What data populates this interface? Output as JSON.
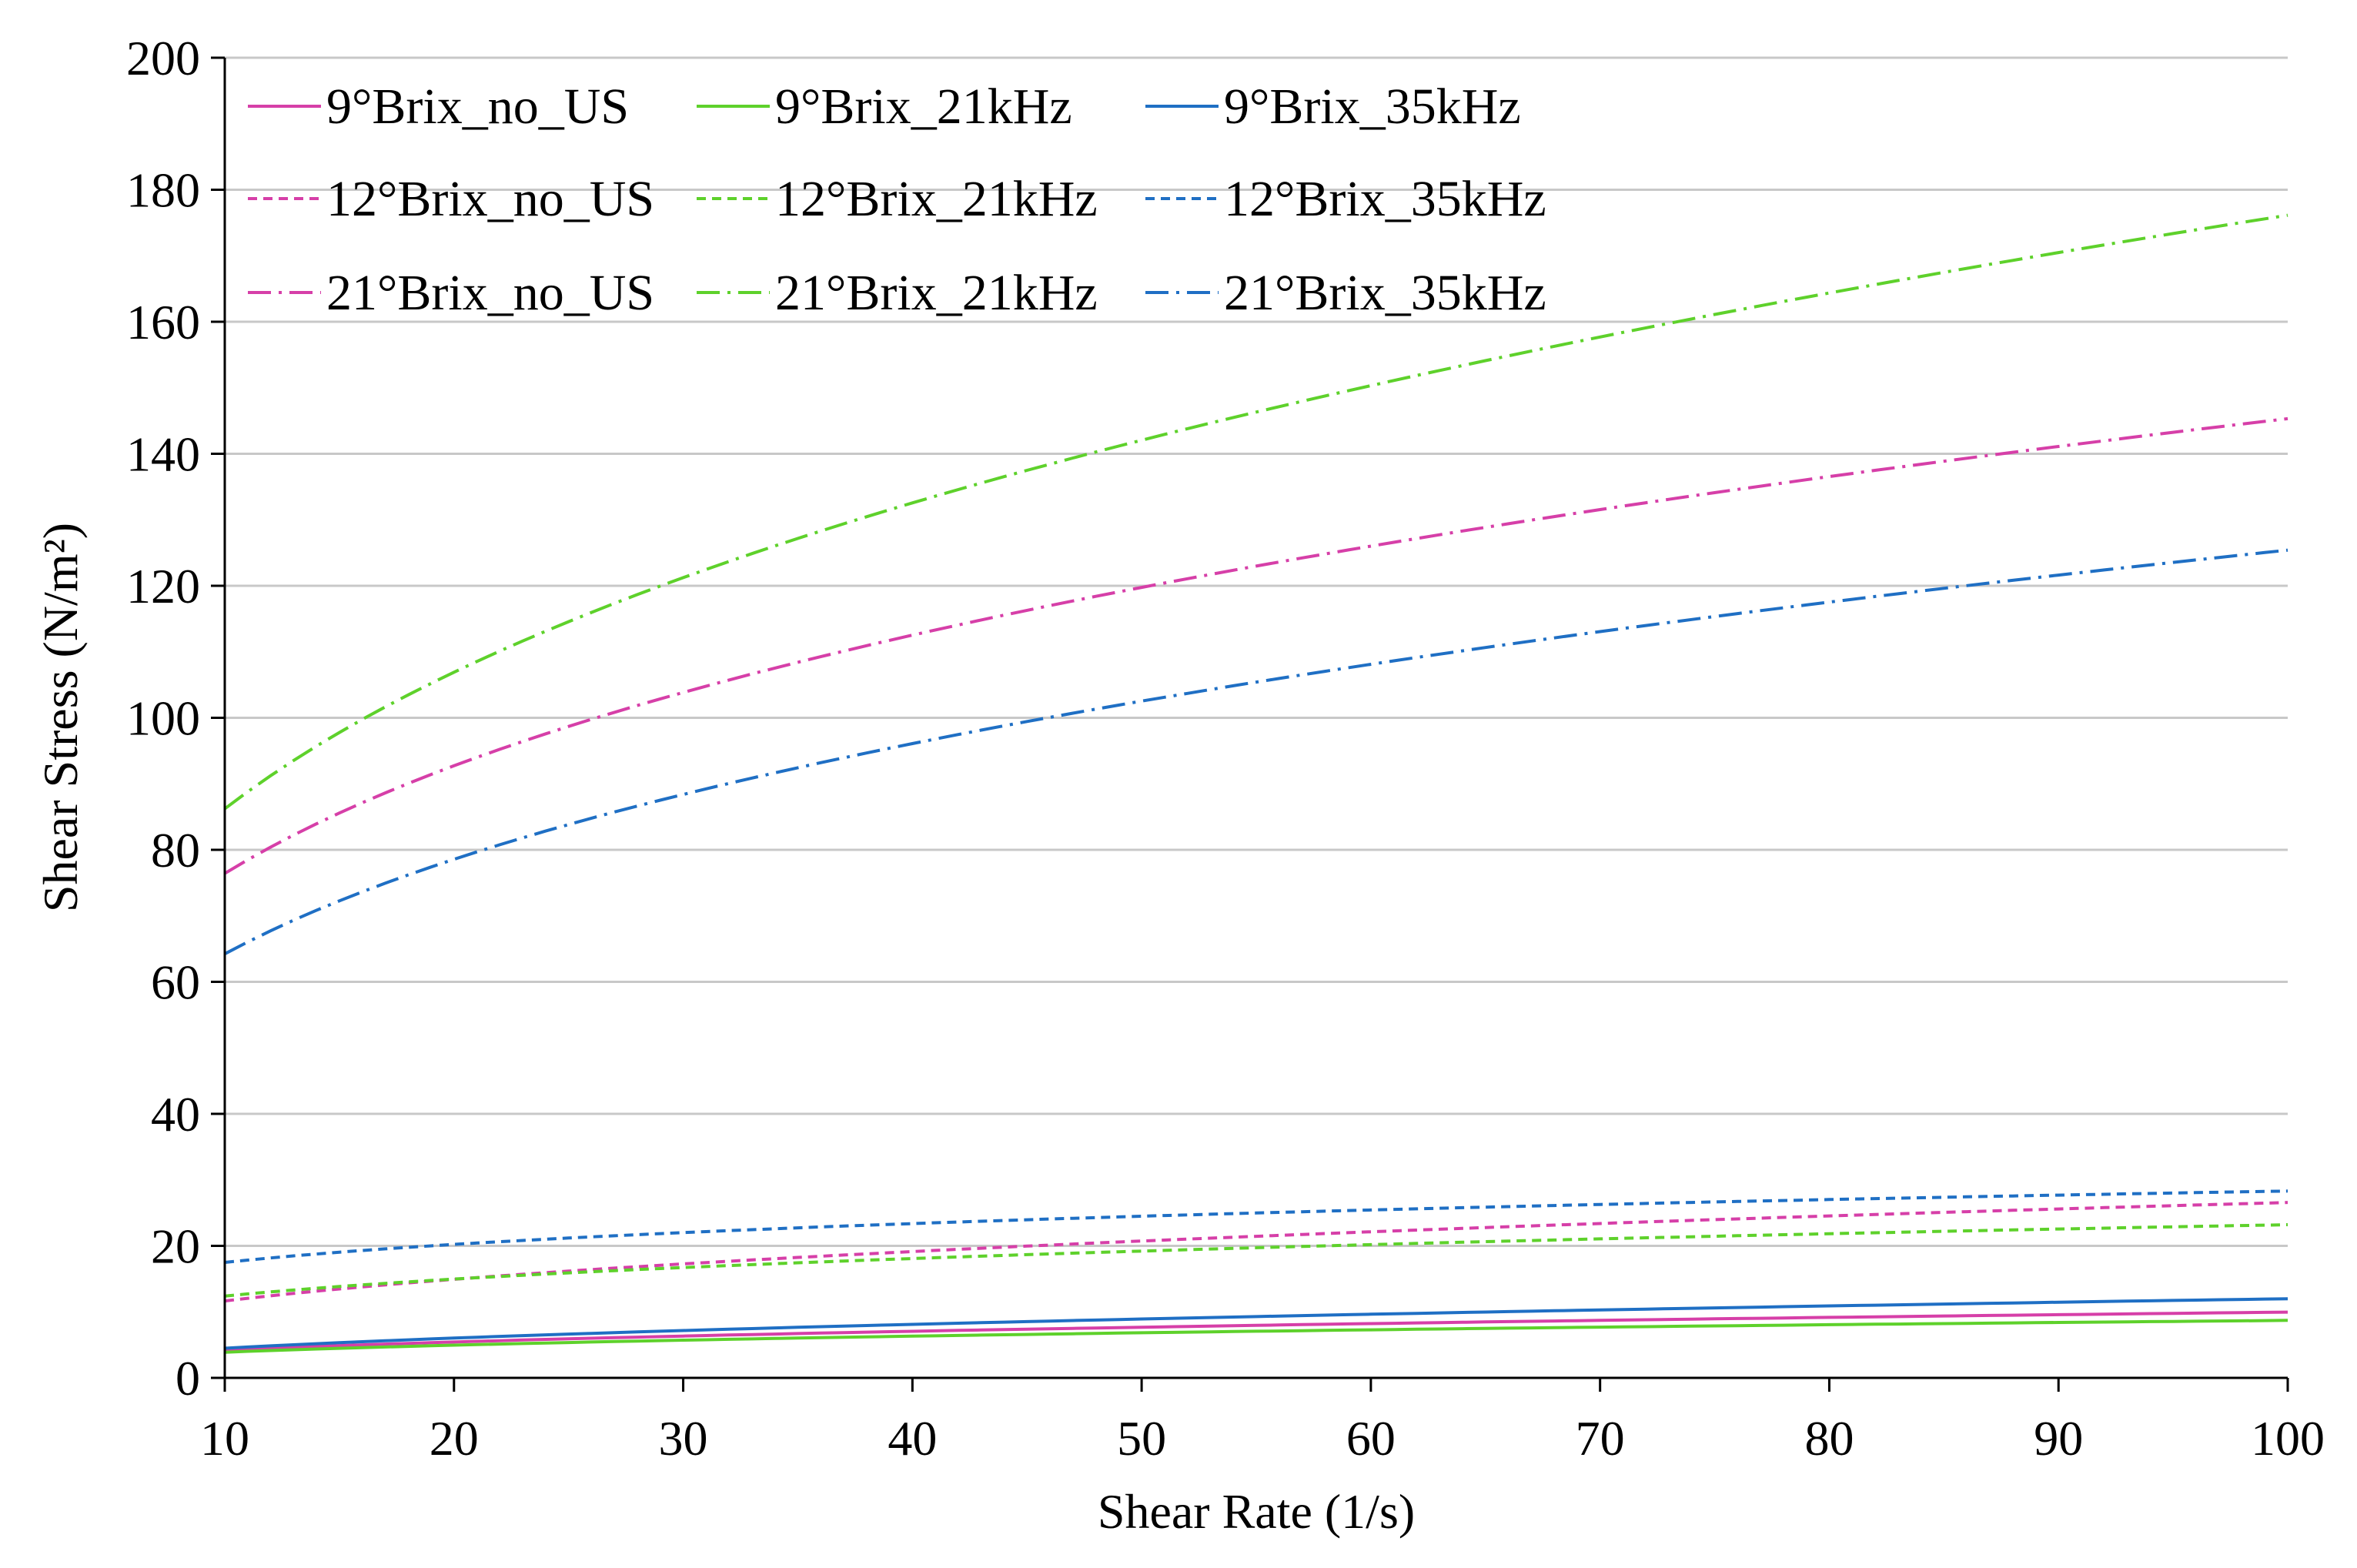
{
  "chart_data": {
    "type": "line",
    "title": "",
    "xlabel": "Shear Rate (1/s)",
    "ylabel": "Shear Stress (N/m²)",
    "xlim": [
      10,
      100
    ],
    "ylim": [
      0,
      200
    ],
    "xticks": [
      "10",
      "20",
      "30",
      "40",
      "50",
      "60",
      "70",
      "80",
      "90",
      "100"
    ],
    "yticks": [
      "0",
      "20",
      "40",
      "60",
      "80",
      "100",
      "120",
      "140",
      "160",
      "180",
      "200"
    ],
    "grid": "horizontal",
    "legend_position": "top-left",
    "x": [
      10,
      20,
      30,
      40,
      50,
      60,
      70,
      80,
      90,
      100
    ],
    "series": [
      {
        "name": "9°Brix_no_US",
        "color": "#d63fa8",
        "dash": "solid",
        "values": [
          4.0,
          5.6,
          6.5,
          7.2,
          7.8,
          8.3,
          8.7,
          9.1,
          9.4,
          9.7
        ]
      },
      {
        "name": "9°Brix_21kHz",
        "color": "#5ed12b",
        "dash": "solid",
        "values": [
          3.8,
          5.0,
          5.8,
          6.4,
          6.9,
          7.3,
          7.7,
          8.0,
          8.3,
          8.6
        ]
      },
      {
        "name": "9°Brix_35kHz",
        "color": "#1f6fc4",
        "dash": "solid",
        "values": [
          4.5,
          6.0,
          7.2,
          8.1,
          8.9,
          9.6,
          10.3,
          10.9,
          11.5,
          12.0
        ]
      },
      {
        "name": "12°Brix_no_US",
        "color": "#d63fa8",
        "dash": "dashed",
        "values": [
          11.5,
          15.0,
          17.5,
          19.3,
          20.8,
          22.1,
          23.3,
          24.4,
          25.5,
          26.5
        ]
      },
      {
        "name": "12°Brix_21kHz",
        "color": "#5ed12b",
        "dash": "dashed",
        "values": [
          12.3,
          15.0,
          16.8,
          18.2,
          19.3,
          20.2,
          21.0,
          21.8,
          22.5,
          23.1
        ]
      },
      {
        "name": "12°Brix_35kHz",
        "color": "#1f6fc4",
        "dash": "dashed",
        "values": [
          17.5,
          20.1,
          22.0,
          23.5,
          24.6,
          25.5,
          26.3,
          27.0,
          27.6,
          28.2
        ]
      },
      {
        "name": "21°Brix_no_US",
        "color": "#d63fa8",
        "dash": "dashdot",
        "values": [
          76.5,
          92.5,
          104.0,
          112.5,
          119.8,
          126.0,
          131.5,
          136.5,
          141.0,
          145.5
        ]
      },
      {
        "name": "21°Brix_21kHz",
        "color": "#5ed12b",
        "dash": "dashdot",
        "values": [
          86.5,
          106.5,
          121.0,
          132.5,
          142.0,
          150.5,
          158.0,
          164.5,
          170.5,
          176.0
        ]
      },
      {
        "name": "21°Brix_35kHz",
        "color": "#1f6fc4",
        "dash": "dashdot",
        "values": [
          64.0,
          79.0,
          88.5,
          96.0,
          102.5,
          108.0,
          113.0,
          117.5,
          121.5,
          125.5
        ]
      }
    ]
  }
}
